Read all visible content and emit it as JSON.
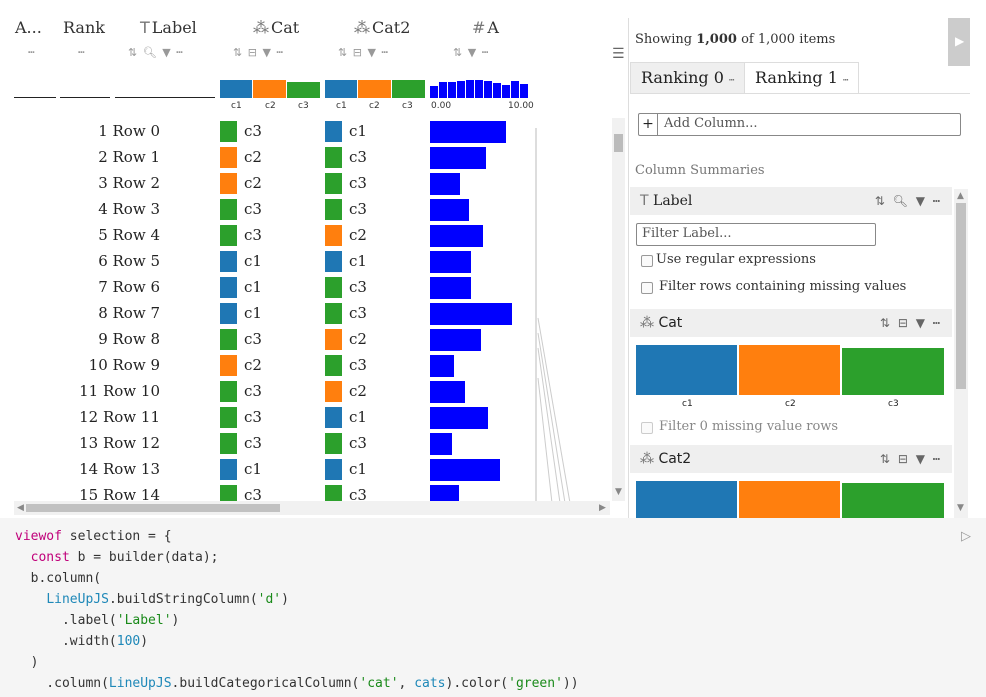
{
  "table": {
    "headers": {
      "agg": "A...",
      "rank": "Rank",
      "label": "Label",
      "cat": "Cat",
      "cat2": "Cat2",
      "a": "A"
    },
    "hist_labels": {
      "c1": "c1",
      "c2": "c2",
      "c3": "c3",
      "a_min": "0.00",
      "a_max": "10.00"
    },
    "rows": [
      {
        "rank": "1",
        "label": "Row 0",
        "cat": "c3",
        "cat2": "c1",
        "a": 0.76
      },
      {
        "rank": "2",
        "label": "Row 1",
        "cat": "c2",
        "cat2": "c3",
        "a": 0.56
      },
      {
        "rank": "3",
        "label": "Row 2",
        "cat": "c2",
        "cat2": "c3",
        "a": 0.3
      },
      {
        "rank": "4",
        "label": "Row 3",
        "cat": "c3",
        "cat2": "c3",
        "a": 0.39
      },
      {
        "rank": "5",
        "label": "Row 4",
        "cat": "c3",
        "cat2": "c2",
        "a": 0.53
      },
      {
        "rank": "6",
        "label": "Row 5",
        "cat": "c1",
        "cat2": "c1",
        "a": 0.41
      },
      {
        "rank": "7",
        "label": "Row 6",
        "cat": "c1",
        "cat2": "c3",
        "a": 0.41
      },
      {
        "rank": "8",
        "label": "Row 7",
        "cat": "c1",
        "cat2": "c3",
        "a": 0.82
      },
      {
        "rank": "9",
        "label": "Row 8",
        "cat": "c3",
        "cat2": "c2",
        "a": 0.51
      },
      {
        "rank": "10",
        "label": "Row 9",
        "cat": "c2",
        "cat2": "c3",
        "a": 0.24
      },
      {
        "rank": "11",
        "label": "Row 10",
        "cat": "c3",
        "cat2": "c2",
        "a": 0.35
      },
      {
        "rank": "12",
        "label": "Row 11",
        "cat": "c3",
        "cat2": "c1",
        "a": 0.58
      },
      {
        "rank": "13",
        "label": "Row 12",
        "cat": "c3",
        "cat2": "c3",
        "a": 0.22
      },
      {
        "rank": "14",
        "label": "Row 13",
        "cat": "c1",
        "cat2": "c1",
        "a": 0.7
      },
      {
        "rank": "15",
        "label": "Row 14",
        "cat": "c3",
        "cat2": "c3",
        "a": 0.29
      }
    ],
    "colors": {
      "c1": "#1f77b4",
      "c2": "#ff7f0e",
      "c3": "#2ca02c",
      "bar": "#0000ff"
    }
  },
  "panel": {
    "showing_prefix": "Showing ",
    "showing_count": "1,000",
    "showing_suffix": " of 1,000 items",
    "tabs": [
      "Ranking 0",
      "Ranking 1"
    ],
    "add_column_placeholder": "Add Column...",
    "summaries_title": "Column Summaries",
    "label_section": "Label",
    "filter_label_placeholder": "Filter Label...",
    "use_regex": "Use regular expressions",
    "filter_missing": "Filter rows containing missing values",
    "cat_section": "Cat",
    "cat_filter_missing": "Filter 0 missing value rows",
    "cat2_section": "Cat2",
    "cat_labels": [
      "c1",
      "c2",
      "c3"
    ]
  },
  "code": [
    "viewof selection = {",
    "  const b = builder(data);",
    "  b.column(",
    "    LineUpJS.buildStringColumn('d')",
    "      .label('Label')",
    "      .width(100)",
    "  )",
    "    .column(LineUpJS.buildCategoricalColumn('cat', cats).color('green'))"
  ]
}
